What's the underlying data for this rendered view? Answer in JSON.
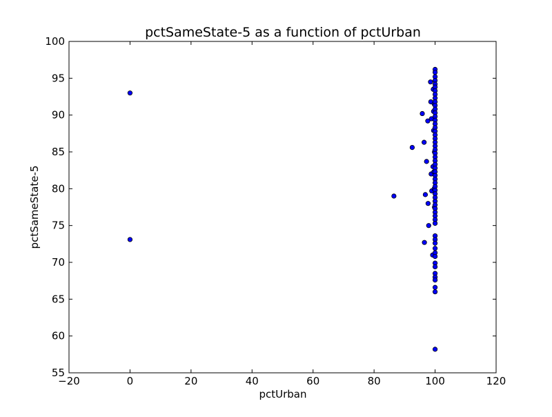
{
  "chart_data": {
    "type": "scatter",
    "title": "pctSameState-5 as a function of pctUrban",
    "xlabel": "pctUrban",
    "ylabel": "pctSameState-5",
    "xlim": [
      -20,
      120
    ],
    "ylim": [
      55,
      100
    ],
    "xticks": [
      -20,
      0,
      20,
      40,
      60,
      80,
      100,
      120
    ],
    "yticks": [
      55,
      60,
      65,
      70,
      75,
      80,
      85,
      90,
      95,
      100
    ],
    "xtick_labels": [
      "−20",
      "0",
      "20",
      "40",
      "60",
      "80",
      "100",
      "120"
    ],
    "ytick_labels": [
      "55",
      "60",
      "65",
      "70",
      "75",
      "80",
      "85",
      "90",
      "95",
      "100"
    ],
    "grid": false,
    "marker_color": "#0000ff",
    "marker_edge_color": "#000000",
    "series": [
      {
        "points": [
          [
            0,
            93.0
          ],
          [
            0,
            73.1
          ],
          [
            86.5,
            79.0
          ],
          [
            92.5,
            85.6
          ],
          [
            95.8,
            90.2
          ],
          [
            96.4,
            86.3
          ],
          [
            96.5,
            72.7
          ],
          [
            96.8,
            79.2
          ],
          [
            97.2,
            83.7
          ],
          [
            97.6,
            89.2
          ],
          [
            97.7,
            78.0
          ],
          [
            97.9,
            75.0
          ],
          [
            98.5,
            94.5
          ],
          [
            98.6,
            91.8
          ],
          [
            98.7,
            82.0
          ],
          [
            98.8,
            89.5
          ],
          [
            98.9,
            79.7
          ],
          [
            99.2,
            71.0
          ],
          [
            99.3,
            83.0
          ],
          [
            99.4,
            93.5
          ],
          [
            99.5,
            87.9
          ],
          [
            99.5,
            90.5
          ],
          [
            99.6,
            82.3
          ],
          [
            99.7,
            91.5
          ],
          [
            99.7,
            80.0
          ],
          [
            99.8,
            85.0
          ],
          [
            99.8,
            77.5
          ],
          [
            100,
            96.2
          ],
          [
            100,
            95.8
          ],
          [
            100,
            95.2
          ],
          [
            100,
            94.7
          ],
          [
            100,
            94.2
          ],
          [
            100,
            93.8
          ],
          [
            100,
            93.3
          ],
          [
            100,
            92.8
          ],
          [
            100,
            92.3
          ],
          [
            100,
            91.8
          ],
          [
            100,
            91.3
          ],
          [
            100,
            90.8
          ],
          [
            100,
            90.3
          ],
          [
            100,
            89.8
          ],
          [
            100,
            89.3
          ],
          [
            100,
            88.8
          ],
          [
            100,
            88.3
          ],
          [
            100,
            87.8
          ],
          [
            100,
            87.3
          ],
          [
            100,
            86.8
          ],
          [
            100,
            86.3
          ],
          [
            100,
            85.8
          ],
          [
            100,
            85.3
          ],
          [
            100,
            84.8
          ],
          [
            100,
            84.3
          ],
          [
            100,
            83.8
          ],
          [
            100,
            83.3
          ],
          [
            100,
            82.8
          ],
          [
            100,
            82.3
          ],
          [
            100,
            81.8
          ],
          [
            100,
            81.3
          ],
          [
            100,
            80.8
          ],
          [
            100,
            80.3
          ],
          [
            100,
            79.8
          ],
          [
            100,
            79.3
          ],
          [
            100,
            78.8
          ],
          [
            100,
            78.3
          ],
          [
            100,
            77.8
          ],
          [
            100,
            77.3
          ],
          [
            100,
            76.8
          ],
          [
            100,
            76.3
          ],
          [
            100,
            75.8
          ],
          [
            100,
            75.3
          ],
          [
            100,
            73.6
          ],
          [
            100,
            73.1
          ],
          [
            100,
            72.6
          ],
          [
            100,
            71.9
          ],
          [
            100,
            71.3
          ],
          [
            100,
            70.8
          ],
          [
            100,
            69.9
          ],
          [
            100,
            69.4
          ],
          [
            100,
            68.5
          ],
          [
            100,
            68.0
          ],
          [
            100,
            67.6
          ],
          [
            100,
            66.6
          ],
          [
            100,
            66.0
          ],
          [
            100,
            58.2
          ]
        ]
      }
    ]
  }
}
